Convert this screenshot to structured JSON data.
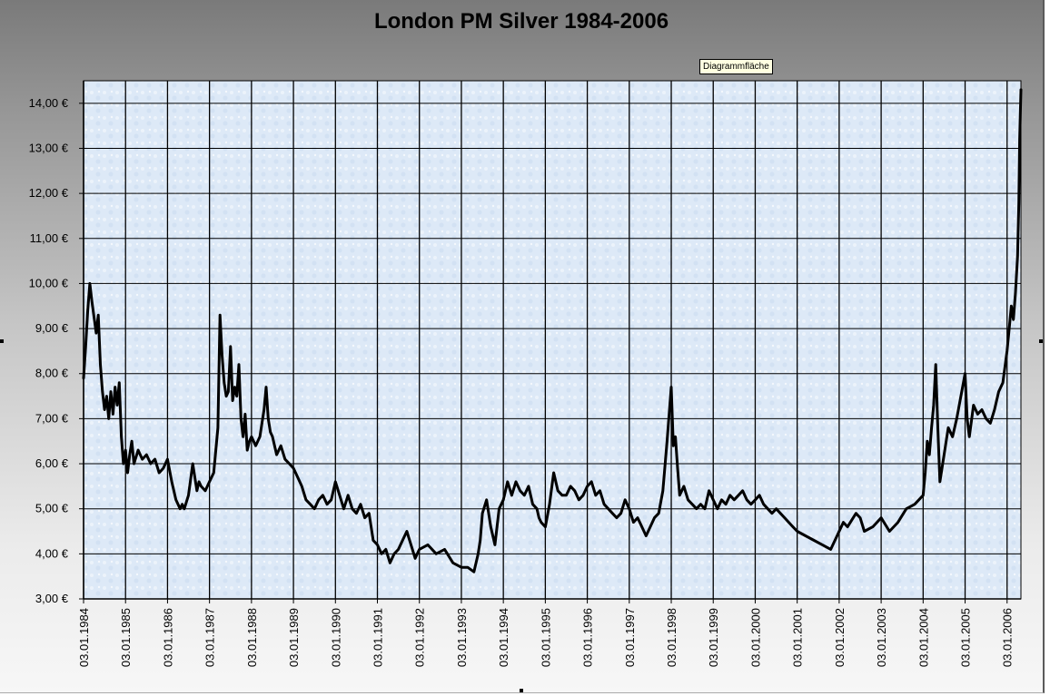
{
  "tooltip": "Diagrammfläche",
  "chart_data": {
    "type": "line",
    "title": "London PM Silver 1984-2006",
    "xlabel": "",
    "ylabel": "",
    "ylim": [
      3,
      14.5
    ],
    "y_ticks": [
      "3,00 €",
      "4,00 €",
      "5,00 €",
      "6,00 €",
      "7,00 €",
      "8,00 €",
      "9,00 €",
      "10,00 €",
      "11,00 €",
      "12,00 €",
      "13,00 €",
      "14,00 €"
    ],
    "x_ticks": [
      "03.01.1984",
      "03.01.1985",
      "03.01.1986",
      "03.01.1987",
      "03.01.1988",
      "03.01.1989",
      "03.01.1990",
      "03.01.1991",
      "03.01.1992",
      "03.01.1993",
      "03.01.1994",
      "03.01.1995",
      "03.01.1996",
      "03.01.1997",
      "03.01.1998",
      "03.01.1999",
      "03.01.2000",
      "03.01.2001",
      "03.01.2002",
      "03.01.2003",
      "03.01.2004",
      "03.01.2005",
      "03.01.2006"
    ],
    "grid": true,
    "legend": "none",
    "colors": {
      "line": "#000000",
      "plot_bg": "#dde9f7",
      "grid": "#000000"
    },
    "series": [
      {
        "x": [
          1984.0,
          1984.05,
          1984.1,
          1984.15,
          1984.2,
          1984.3,
          1984.35,
          1984.4,
          1984.45,
          1984.5,
          1984.55,
          1984.6,
          1984.65,
          1984.7,
          1984.75,
          1984.8,
          1984.85,
          1984.9,
          1984.95,
          1985.0,
          1985.05,
          1985.1,
          1985.15,
          1985.2,
          1985.3,
          1985.4,
          1985.5,
          1985.6,
          1985.7,
          1985.8,
          1985.9,
          1986.0,
          1986.1,
          1986.2,
          1986.3,
          1986.35,
          1986.4,
          1986.5,
          1986.6,
          1986.7,
          1986.75,
          1986.8,
          1986.9,
          1987.0,
          1987.1,
          1987.2,
          1987.25,
          1987.3,
          1987.35,
          1987.4,
          1987.45,
          1987.5,
          1987.55,
          1987.6,
          1987.65,
          1987.7,
          1987.75,
          1987.8,
          1987.85,
          1987.9,
          1987.95,
          1988.0,
          1988.1,
          1988.2,
          1988.3,
          1988.35,
          1988.4,
          1988.45,
          1988.5,
          1988.6,
          1988.7,
          1988.8,
          1988.9,
          1989.0,
          1989.1,
          1989.2,
          1989.3,
          1989.4,
          1989.5,
          1989.6,
          1989.7,
          1989.8,
          1989.9,
          1990.0,
          1990.1,
          1990.2,
          1990.3,
          1990.4,
          1990.5,
          1990.6,
          1990.7,
          1990.8,
          1990.9,
          1991.0,
          1991.1,
          1991.2,
          1991.3,
          1991.4,
          1991.5,
          1991.6,
          1991.7,
          1991.8,
          1991.9,
          1992.0,
          1992.2,
          1992.4,
          1992.6,
          1992.8,
          1993.0,
          1993.15,
          1993.3,
          1993.4,
          1993.45,
          1993.5,
          1993.6,
          1993.7,
          1993.8,
          1993.9,
          1994.0,
          1994.1,
          1994.2,
          1994.3,
          1994.4,
          1994.5,
          1994.6,
          1994.7,
          1994.8,
          1994.85,
          1994.9,
          1995.0,
          1995.1,
          1995.2,
          1995.3,
          1995.4,
          1995.5,
          1995.6,
          1995.7,
          1995.8,
          1995.9,
          1996.0,
          1996.1,
          1996.2,
          1996.3,
          1996.4,
          1996.5,
          1996.6,
          1996.7,
          1996.8,
          1996.9,
          1997.0,
          1997.1,
          1997.2,
          1997.3,
          1997.4,
          1997.5,
          1997.6,
          1997.7,
          1997.8,
          1997.9,
          1998.0,
          1998.05,
          1998.1,
          1998.15,
          1998.2,
          1998.3,
          1998.4,
          1998.5,
          1998.6,
          1998.7,
          1998.8,
          1998.9,
          1999.0,
          1999.1,
          1999.2,
          1999.3,
          1999.4,
          1999.5,
          1999.6,
          1999.7,
          1999.8,
          1999.9,
          2000.0,
          2000.1,
          2000.2,
          2000.3,
          2000.4,
          2000.5,
          2000.6,
          2000.7,
          2000.8,
          2000.9,
          2001.0,
          2001.2,
          2001.4,
          2001.6,
          2001.8,
          2002.0,
          2002.1,
          2002.2,
          2002.4,
          2002.5,
          2002.6,
          2002.8,
          2003.0,
          2003.2,
          2003.4,
          2003.6,
          2003.8,
          2004.0,
          2004.05,
          2004.1,
          2004.15,
          2004.2,
          2004.25,
          2004.3,
          2004.35,
          2004.4,
          2004.45,
          2004.5,
          2004.55,
          2004.6,
          2004.7,
          2004.8,
          2004.9,
          2005.0,
          2005.05,
          2005.1,
          2005.2,
          2005.3,
          2005.4,
          2005.5,
          2005.6,
          2005.7,
          2005.8,
          2005.9,
          2006.0,
          2006.05,
          2006.1,
          2006.15,
          2006.2,
          2006.25,
          2006.28,
          2006.3,
          2006.33
        ],
        "y": [
          7.9,
          8.6,
          9.4,
          10.0,
          9.6,
          8.9,
          9.3,
          8.2,
          7.6,
          7.2,
          7.5,
          7.0,
          7.6,
          7.1,
          7.7,
          7.3,
          7.8,
          6.6,
          6.0,
          6.3,
          5.8,
          6.2,
          6.5,
          6.0,
          6.3,
          6.1,
          6.2,
          6.0,
          6.1,
          5.8,
          5.9,
          6.1,
          5.6,
          5.2,
          5.0,
          5.1,
          5.0,
          5.3,
          6.0,
          5.4,
          5.6,
          5.5,
          5.4,
          5.6,
          5.8,
          6.8,
          9.3,
          8.4,
          7.8,
          7.5,
          7.6,
          8.6,
          7.4,
          7.7,
          7.5,
          8.2,
          7.0,
          6.6,
          7.1,
          6.3,
          6.5,
          6.6,
          6.4,
          6.6,
          7.2,
          7.7,
          7.0,
          6.7,
          6.6,
          6.2,
          6.4,
          6.1,
          6.0,
          5.9,
          5.7,
          5.5,
          5.2,
          5.1,
          5.0,
          5.2,
          5.3,
          5.1,
          5.2,
          5.6,
          5.3,
          5.0,
          5.3,
          5.0,
          4.9,
          5.1,
          4.8,
          4.9,
          4.3,
          4.2,
          4.0,
          4.1,
          3.8,
          4.0,
          4.1,
          4.3,
          4.5,
          4.2,
          3.9,
          4.1,
          4.2,
          4.0,
          4.1,
          3.8,
          3.7,
          3.7,
          3.6,
          4.0,
          4.3,
          4.9,
          5.2,
          4.6,
          4.2,
          5.0,
          5.2,
          5.6,
          5.3,
          5.6,
          5.4,
          5.3,
          5.5,
          5.1,
          5.0,
          4.8,
          4.7,
          4.6,
          5.1,
          5.8,
          5.4,
          5.3,
          5.3,
          5.5,
          5.4,
          5.2,
          5.3,
          5.5,
          5.6,
          5.3,
          5.4,
          5.1,
          5.0,
          4.9,
          4.8,
          4.9,
          5.2,
          5.0,
          4.7,
          4.8,
          4.6,
          4.4,
          4.6,
          4.8,
          4.9,
          5.4,
          6.5,
          7.7,
          6.4,
          6.6,
          5.9,
          5.3,
          5.5,
          5.2,
          5.1,
          5.0,
          5.1,
          5.0,
          5.4,
          5.2,
          5.0,
          5.2,
          5.1,
          5.3,
          5.2,
          5.3,
          5.4,
          5.2,
          5.1,
          5.2,
          5.3,
          5.1,
          5.0,
          4.9,
          5.0,
          4.9,
          4.8,
          4.7,
          4.6,
          4.5,
          4.4,
          4.3,
          4.2,
          4.1,
          4.5,
          4.7,
          4.6,
          4.9,
          4.8,
          4.5,
          4.6,
          4.8,
          4.5,
          4.7,
          5.0,
          5.1,
          5.3,
          5.8,
          6.5,
          6.2,
          6.8,
          7.3,
          8.2,
          6.8,
          5.6,
          5.9,
          6.2,
          6.5,
          6.8,
          6.6,
          7.0,
          7.5,
          8.0,
          7.0,
          6.6,
          7.3,
          7.1,
          7.2,
          7.0,
          6.9,
          7.2,
          7.6,
          7.8,
          8.5,
          9.0,
          9.5,
          9.2,
          9.8,
          10.6,
          11.8,
          13.2,
          14.3
        ]
      }
    ]
  }
}
